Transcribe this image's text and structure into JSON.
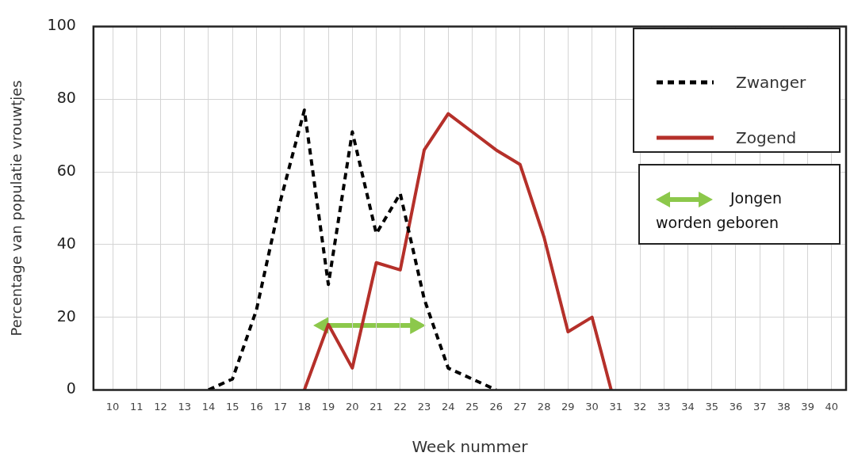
{
  "chart_data": {
    "type": "line",
    "xlabel": "Week nummer",
    "ylabel": "Percentage van populatie vrouwtjes",
    "xlim": [
      9.2,
      40.6
    ],
    "xticks": [
      10,
      11,
      12,
      13,
      14,
      15,
      16,
      17,
      18,
      19,
      20,
      21,
      22,
      23,
      24,
      25,
      26,
      27,
      28,
      29,
      30,
      31,
      32,
      33,
      34,
      35,
      36,
      37,
      38,
      39,
      40
    ],
    "ylim": [
      0,
      100
    ],
    "yticks": [
      0,
      20,
      40,
      60,
      80,
      100
    ],
    "grid": true,
    "legend": "top right",
    "marker": "none",
    "annotations": [
      "Jongen worden geboren"
    ],
    "series": [
      {
        "name": "Zwanger",
        "color": "#000000",
        "line_style": "dashed",
        "x": [
          14,
          15,
          16,
          17,
          18,
          19,
          20,
          21,
          22,
          23,
          24,
          25,
          26
        ],
        "values": [
          0,
          3,
          22,
          52,
          77,
          29,
          71,
          43,
          54,
          25,
          6,
          3,
          0
        ]
      },
      {
        "name": "Zogend",
        "color": "#b5302a",
        "line_style": "solid",
        "x": [
          18,
          19,
          20,
          21,
          22,
          23,
          24,
          25,
          26,
          27,
          28,
          29,
          30,
          30.8
        ],
        "values": [
          0,
          18,
          6,
          35,
          33,
          66,
          76,
          71,
          66,
          62,
          42,
          16,
          20,
          0
        ]
      }
    ]
  }
}
